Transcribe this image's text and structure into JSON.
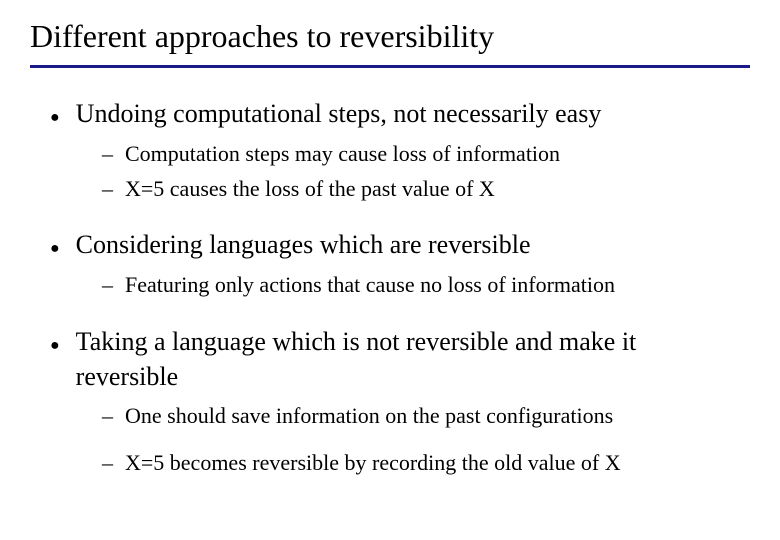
{
  "title": "Different approaches to reversibility",
  "colors": {
    "rule": "#1a1a8a",
    "text": "#000000",
    "background": "#ffffff"
  },
  "bullets": [
    {
      "text": "Undoing computational steps, not necessarily easy",
      "subs": [
        {
          "text": "Computation steps may cause loss of information",
          "spaced": false
        },
        {
          "text": "X=5 causes the loss of the past value of X",
          "spaced": false
        }
      ]
    },
    {
      "text": "Considering languages which are reversible",
      "subs": [
        {
          "text": "Featuring only actions that cause no loss of information",
          "spaced": false
        }
      ]
    },
    {
      "text": "Taking a language which is not reversible and make it reversible",
      "subs": [
        {
          "text": "One should save information on the past configurations",
          "spaced": true
        },
        {
          "text": "X=5 becomes reversible by recording the old value of X",
          "spaced": false
        }
      ]
    }
  ],
  "markers": {
    "bullet": "●",
    "dash": "–"
  }
}
